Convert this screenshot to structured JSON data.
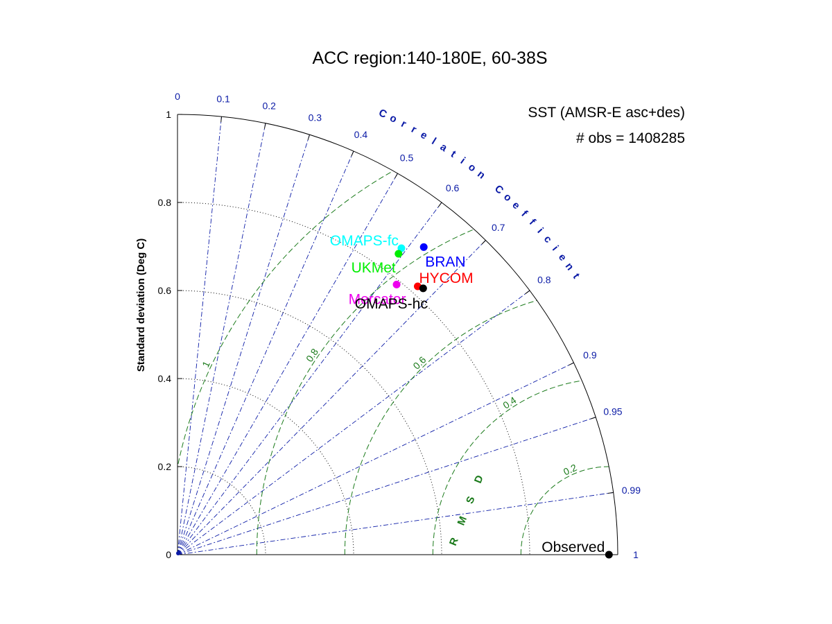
{
  "chart_data": {
    "type": "scatter",
    "subtype": "taylor-diagram",
    "title": "ACC region:140-180E, 60-38S",
    "info_lines": [
      "SST (AMSR-E asc+des)",
      "# obs = 1408285"
    ],
    "ylabel": "Standard deviation (Deg C)",
    "correlation_label": "Correlation Coefficient",
    "rmsd_label": "RMSD",
    "sd_range": [
      0,
      1
    ],
    "sd_ticks": [
      "0",
      "0.2",
      "0.4",
      "0.6",
      "0.8",
      "1"
    ],
    "sd_tick_values": [
      0,
      0.2,
      0.4,
      0.6,
      0.8,
      1
    ],
    "sd_arcs": [
      0.2,
      0.4,
      0.6,
      0.8
    ],
    "correlation_ticks": [
      "0",
      "0.1",
      "0.2",
      "0.3",
      "0.4",
      "0.5",
      "0.6",
      "0.7",
      "0.8",
      "0.9",
      "0.95",
      "0.99",
      "1"
    ],
    "correlation_values": [
      0,
      0.1,
      0.2,
      0.3,
      0.4,
      0.5,
      0.6,
      0.7,
      0.8,
      0.9,
      0.95,
      0.99,
      1
    ],
    "rmsd_contours": [
      0.2,
      0.4,
      0.6,
      0.8,
      1
    ],
    "rmsd_labels": [
      "0.2",
      "0.4",
      "0.6",
      "0.8",
      "1"
    ],
    "reference": {
      "name": "Observed",
      "sd": 0.98,
      "correlation": 1
    },
    "models": [
      {
        "name": "OMAPS-fc",
        "sd": 0.862,
        "correlation": 0.59,
        "color": "#00ffff"
      },
      {
        "name": "UKMet",
        "sd": 0.848,
        "correlation": 0.592,
        "color": "#00ee00"
      },
      {
        "name": "BRAN",
        "sd": 0.895,
        "correlation": 0.625,
        "color": "#0000ff"
      },
      {
        "name": "Mercator",
        "sd": 0.79,
        "correlation": 0.63,
        "color": "#ee00ee"
      },
      {
        "name": "HYCOM",
        "sd": 0.818,
        "correlation": 0.667,
        "color": "#ff0000"
      },
      {
        "name": "OMAPS-hc",
        "sd": 0.823,
        "correlation": 0.678,
        "color": "#000000"
      }
    ],
    "colors": {
      "correlation_lines": "#0a1aa6",
      "rmsd_contours": "#1a7a1a",
      "sd_arcs": "#000000"
    }
  }
}
